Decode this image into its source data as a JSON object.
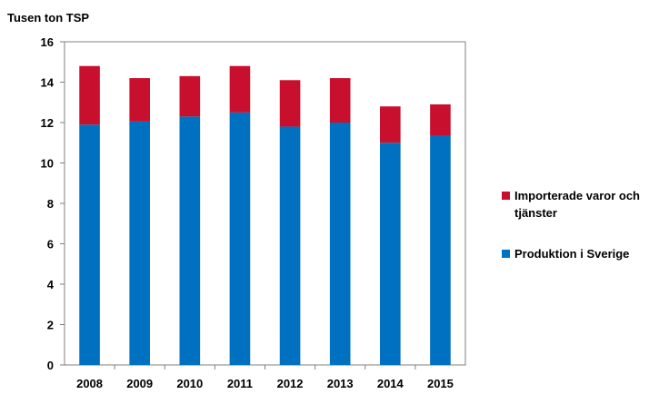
{
  "chart_data": {
    "type": "bar",
    "stacked": true,
    "title": "",
    "xlabel": "",
    "ylabel": "Tusen ton TSP",
    "ylim": [
      0,
      16
    ],
    "yticks": [
      0,
      2,
      4,
      6,
      8,
      10,
      12,
      14,
      16
    ],
    "grid": false,
    "legend_position": "right",
    "categories": [
      "2008",
      "2009",
      "2010",
      "2011",
      "2012",
      "2013",
      "2014",
      "2015"
    ],
    "series": [
      {
        "name": "Produktion i Sverige",
        "color": "#0070c0",
        "values": [
          11.9,
          12.05,
          12.3,
          12.5,
          11.8,
          12.0,
          11.0,
          11.35
        ]
      },
      {
        "name": "Importerade varor och tjänster",
        "color": "#c8102e",
        "values": [
          2.9,
          2.15,
          2.0,
          2.3,
          2.3,
          2.2,
          1.8,
          1.55
        ]
      }
    ],
    "legend": [
      {
        "series_index": 1,
        "lines": [
          "Importerade varor och",
          "tjänster"
        ]
      },
      {
        "series_index": 0,
        "lines": [
          "Produktion i Sverige"
        ]
      }
    ]
  }
}
